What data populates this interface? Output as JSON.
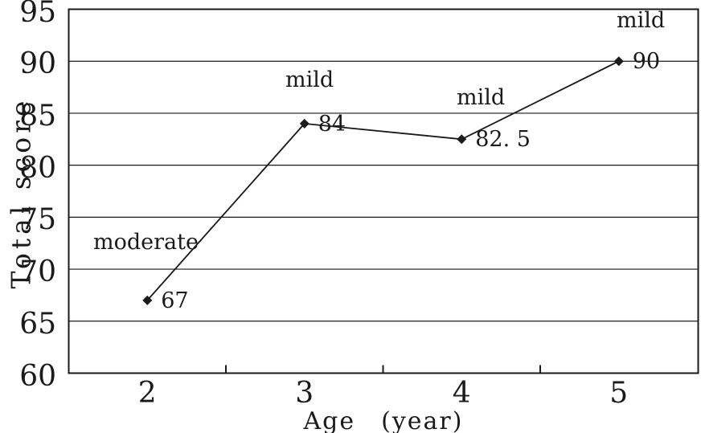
{
  "chart_data": {
    "type": "line",
    "title": "",
    "xlabel": "Age　(year)",
    "ylabel": "Total score",
    "x": [
      2,
      3,
      4,
      5
    ],
    "xticks": [
      "2",
      "3",
      "4",
      "5"
    ],
    "series": [
      {
        "name": "Total score",
        "values": [
          67,
          84,
          82.5,
          90
        ]
      }
    ],
    "point_value_labels": [
      "67",
      "84",
      "82. 5",
      "90"
    ],
    "point_annotations": [
      "moderate",
      "mild",
      "mild",
      "mild"
    ],
    "ylim": [
      60,
      95
    ],
    "ytick_step": 5,
    "yticks": [
      "95",
      "90",
      "85",
      "80",
      "75",
      "70",
      "65",
      "60"
    ],
    "grid": "horizontal-only",
    "legend_position": "none",
    "marker": "diamond",
    "colors": {
      "line": "#1a1a1a",
      "marker": "#1a1a1a",
      "grid": "#1a1a1a",
      "border": "#1a1a1a",
      "background": "#ffffff",
      "text": "#1a1a1a"
    }
  }
}
